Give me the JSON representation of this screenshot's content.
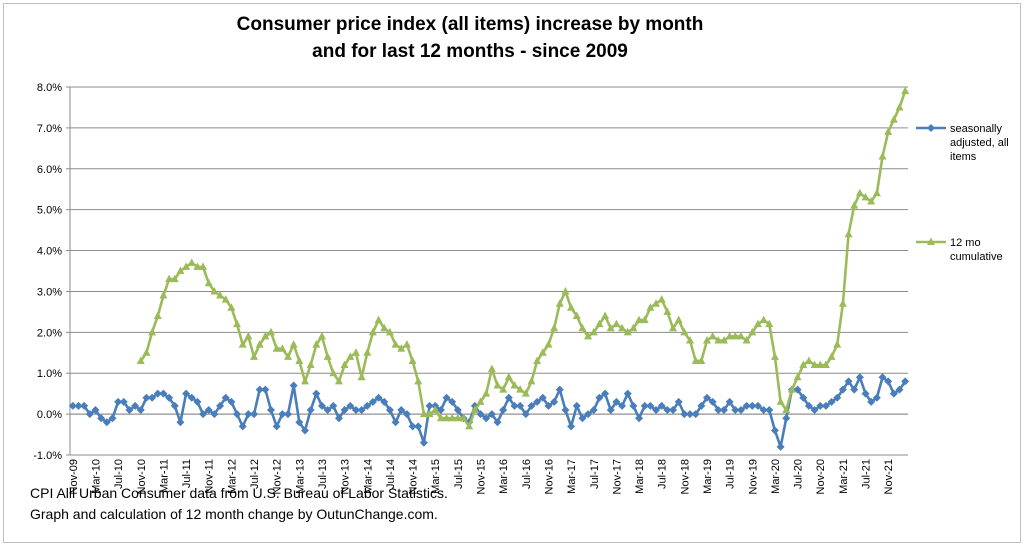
{
  "chart_data": {
    "type": "line",
    "title": [
      "Consumer price index (all items) increase by month",
      "and for last 12 months - since 2009"
    ],
    "xlabel": "",
    "ylabel": "",
    "ylim": [
      -1.0,
      8.0
    ],
    "y_ticks": [
      "-1.0%",
      "0.0%",
      "1.0%",
      "2.0%",
      "3.0%",
      "4.0%",
      "5.0%",
      "6.0%",
      "7.0%",
      "8.0%"
    ],
    "grid": "horizontal",
    "legend_position": "right",
    "categories": [
      "Nov-09",
      "Dec-09",
      "Jan-10",
      "Feb-10",
      "Mar-10",
      "Apr-10",
      "May-10",
      "Jun-10",
      "Jul-10",
      "Aug-10",
      "Sep-10",
      "Oct-10",
      "Nov-10",
      "Dec-10",
      "Jan-11",
      "Feb-11",
      "Mar-11",
      "Apr-11",
      "May-11",
      "Jun-11",
      "Jul-11",
      "Aug-11",
      "Sep-11",
      "Oct-11",
      "Nov-11",
      "Dec-11",
      "Jan-12",
      "Feb-12",
      "Mar-12",
      "Apr-12",
      "May-12",
      "Jun-12",
      "Jul-12",
      "Aug-12",
      "Sep-12",
      "Oct-12",
      "Nov-12",
      "Dec-12",
      "Jan-13",
      "Feb-13",
      "Mar-13",
      "Apr-13",
      "May-13",
      "Jun-13",
      "Jul-13",
      "Aug-13",
      "Sep-13",
      "Oct-13",
      "Nov-13",
      "Dec-13",
      "Jan-14",
      "Feb-14",
      "Mar-14",
      "Apr-14",
      "May-14",
      "Jun-14",
      "Jul-14",
      "Aug-14",
      "Sep-14",
      "Oct-14",
      "Nov-14",
      "Dec-14",
      "Jan-15",
      "Feb-15",
      "Mar-15",
      "Apr-15",
      "May-15",
      "Jun-15",
      "Jul-15",
      "Aug-15",
      "Sep-15",
      "Oct-15",
      "Nov-15",
      "Dec-15",
      "Jan-16",
      "Feb-16",
      "Mar-16",
      "Apr-16",
      "May-16",
      "Jun-16",
      "Jul-16",
      "Aug-16",
      "Sep-16",
      "Oct-16",
      "Nov-16",
      "Dec-16",
      "Jan-17",
      "Feb-17",
      "Mar-17",
      "Apr-17",
      "May-17",
      "Jun-17",
      "Jul-17",
      "Aug-17",
      "Sep-17",
      "Oct-17",
      "Nov-17",
      "Dec-17",
      "Jan-18",
      "Feb-18",
      "Mar-18",
      "Apr-18",
      "May-18",
      "Jun-18",
      "Jul-18",
      "Aug-18",
      "Sep-18",
      "Oct-18",
      "Nov-18",
      "Dec-18",
      "Jan-19",
      "Feb-19",
      "Mar-19",
      "Apr-19",
      "May-19",
      "Jun-19",
      "Jul-19",
      "Aug-19",
      "Sep-19",
      "Oct-19",
      "Nov-19",
      "Dec-19",
      "Jan-20",
      "Feb-20",
      "Mar-20",
      "Apr-20",
      "May-20",
      "Jun-20",
      "Jul-20",
      "Aug-20",
      "Sep-20",
      "Oct-20",
      "Nov-20",
      "Dec-20",
      "Jan-21",
      "Feb-21",
      "Mar-21",
      "Apr-21",
      "May-21",
      "Jun-21",
      "Jul-21",
      "Aug-21",
      "Sep-21",
      "Oct-21",
      "Nov-21",
      "Dec-21",
      "Jan-22",
      "Feb-22"
    ],
    "x_tick_labels": [
      "Nov-09",
      "Mar-10",
      "Jul-10",
      "Nov-10",
      "Mar-11",
      "Jul-11",
      "Nov-11",
      "Mar-12",
      "Jul-12",
      "Nov-12",
      "Mar-13",
      "Jul-13",
      "Nov-13",
      "Mar-14",
      "Jul-14",
      "Nov-14",
      "Mar-15",
      "Jul-15",
      "Nov-15",
      "Mar-16",
      "Jul-16",
      "Nov-16",
      "Mar-17",
      "Jul-17",
      "Nov-17",
      "Mar-18",
      "Jul-18",
      "Nov-18",
      "Mar-19",
      "Jul-19",
      "Nov-19",
      "Mar-20",
      "Jul-20",
      "Nov-20",
      "Mar-21",
      "Jul-21",
      "Nov-21"
    ],
    "series": [
      {
        "name": "seasonally adjusted, all items",
        "color": "#4a7ebb",
        "marker": "diamond",
        "values": [
          0.2,
          0.2,
          0.2,
          0.0,
          0.1,
          -0.1,
          -0.2,
          -0.1,
          0.3,
          0.3,
          0.1,
          0.2,
          0.1,
          0.4,
          0.4,
          0.5,
          0.5,
          0.4,
          0.2,
          -0.2,
          0.5,
          0.4,
          0.3,
          0.0,
          0.1,
          0.0,
          0.2,
          0.4,
          0.3,
          0.0,
          -0.3,
          0.0,
          0.0,
          0.6,
          0.6,
          0.1,
          -0.3,
          0.0,
          0.0,
          0.7,
          -0.2,
          -0.4,
          0.1,
          0.5,
          0.2,
          0.1,
          0.2,
          -0.1,
          0.1,
          0.2,
          0.1,
          0.1,
          0.2,
          0.3,
          0.4,
          0.3,
          0.1,
          -0.2,
          0.1,
          0.0,
          -0.3,
          -0.3,
          -0.7,
          0.2,
          0.2,
          0.1,
          0.4,
          0.3,
          0.1,
          -0.1,
          -0.2,
          0.2,
          0.0,
          -0.1,
          0.0,
          -0.2,
          0.1,
          0.4,
          0.2,
          0.2,
          0.0,
          0.2,
          0.3,
          0.4,
          0.2,
          0.3,
          0.6,
          0.1,
          -0.3,
          0.2,
          -0.1,
          0.0,
          0.1,
          0.4,
          0.5,
          0.1,
          0.3,
          0.2,
          0.5,
          0.2,
          -0.1,
          0.2,
          0.2,
          0.1,
          0.2,
          0.1,
          0.1,
          0.3,
          0.0,
          0.0,
          0.0,
          0.2,
          0.4,
          0.3,
          0.1,
          0.1,
          0.3,
          0.1,
          0.1,
          0.2,
          0.2,
          0.2,
          0.1,
          0.1,
          -0.4,
          -0.8,
          -0.1,
          0.6,
          0.6,
          0.4,
          0.2,
          0.1,
          0.2,
          0.2,
          0.3,
          0.4,
          0.6,
          0.8,
          0.6,
          0.9,
          0.5,
          0.3,
          0.4,
          0.9,
          0.8,
          0.5,
          0.6,
          0.8
        ]
      },
      {
        "name": "12 mo cumulative",
        "color": "#9bbb59",
        "marker": "triangle",
        "values": [
          null,
          null,
          null,
          null,
          null,
          null,
          null,
          null,
          null,
          null,
          null,
          null,
          1.3,
          1.5,
          2.0,
          2.4,
          2.9,
          3.3,
          3.3,
          3.5,
          3.6,
          3.7,
          3.6,
          3.6,
          3.2,
          3.0,
          2.9,
          2.8,
          2.6,
          2.2,
          1.7,
          1.9,
          1.4,
          1.7,
          1.9,
          2.0,
          1.6,
          1.6,
          1.4,
          1.7,
          1.3,
          0.8,
          1.2,
          1.7,
          1.9,
          1.4,
          1.0,
          0.8,
          1.2,
          1.4,
          1.5,
          0.9,
          1.5,
          2.0,
          2.3,
          2.1,
          2.0,
          1.7,
          1.6,
          1.7,
          1.3,
          0.8,
          0.0,
          0.0,
          0.1,
          -0.1,
          -0.1,
          -0.1,
          -0.1,
          -0.1,
          -0.3,
          0.1,
          0.3,
          0.5,
          1.1,
          0.7,
          0.6,
          0.9,
          0.7,
          0.6,
          0.5,
          0.8,
          1.3,
          1.5,
          1.7,
          2.1,
          2.7,
          3.0,
          2.6,
          2.4,
          2.1,
          1.9,
          2.0,
          2.2,
          2.4,
          2.1,
          2.2,
          2.1,
          2.0,
          2.1,
          2.3,
          2.3,
          2.6,
          2.7,
          2.8,
          2.5,
          2.1,
          2.3,
          2.0,
          1.8,
          1.3,
          1.3,
          1.8,
          1.9,
          1.8,
          1.8,
          1.9,
          1.9,
          1.9,
          1.8,
          2.0,
          2.2,
          2.3,
          2.2,
          1.4,
          0.3,
          0.1,
          0.6,
          0.9,
          1.2,
          1.3,
          1.2,
          1.2,
          1.2,
          1.4,
          1.7,
          2.7,
          4.4,
          5.1,
          5.4,
          5.3,
          5.2,
          5.4,
          6.3,
          6.9,
          7.2,
          7.5,
          7.9
        ]
      }
    ],
    "footer": [
      "CPI Alll Urban Consumer data from U.S. Bureau of Labor Statistics.",
      "Graph and calculation of 12 month change by OutunChange.com."
    ]
  }
}
